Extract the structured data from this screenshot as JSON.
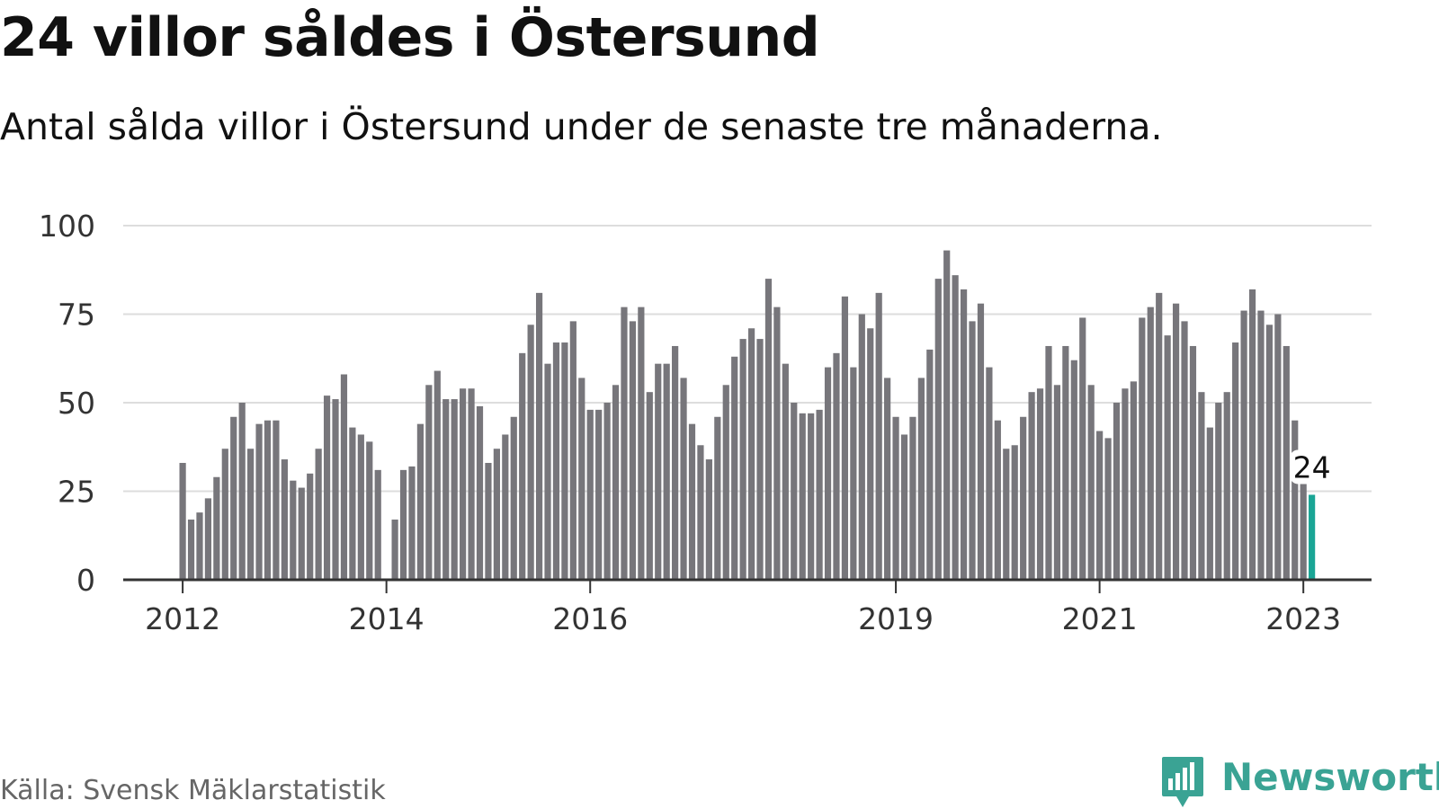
{
  "header": {
    "title": "24 villor såldes i Östersund",
    "subtitle": "Antal sålda villor i Östersund under de senaste tre månaderna."
  },
  "footer": {
    "source": "Källa: Svensk Mäklarstatistik",
    "brand_name": "Newsworthy",
    "brand_icon": "chart-speech-bubble-icon"
  },
  "colors": {
    "bar": "#77767b",
    "highlight": "#1aa595",
    "grid": "#dddddd",
    "axis": "#333333",
    "brand": "#3aa394"
  },
  "chart_data": {
    "type": "bar",
    "title": "24 villor såldes i Östersund",
    "subtitle": "Antal sålda villor i Östersund under de senaste tre månaderna.",
    "xlabel": "",
    "ylabel": "",
    "ylim": [
      0,
      100
    ],
    "yticks": [
      0,
      25,
      50,
      75,
      100
    ],
    "grid": true,
    "legend": "none",
    "x_start": "2012-01",
    "x_tick_labels": [
      "2012",
      "2014",
      "2016",
      "2019",
      "2021",
      "2023"
    ],
    "annotation": {
      "label": "24",
      "index": 133
    },
    "values": [
      33,
      17,
      19,
      23,
      29,
      37,
      46,
      50,
      37,
      44,
      45,
      45,
      34,
      28,
      26,
      30,
      37,
      52,
      51,
      58,
      43,
      41,
      39,
      31,
      0,
      17,
      31,
      32,
      44,
      55,
      59,
      51,
      51,
      54,
      54,
      49,
      33,
      37,
      41,
      46,
      64,
      72,
      81,
      61,
      67,
      67,
      73,
      57,
      48,
      48,
      50,
      55,
      77,
      73,
      77,
      53,
      61,
      61,
      66,
      57,
      44,
      38,
      34,
      46,
      55,
      63,
      68,
      71,
      68,
      85,
      77,
      61,
      50,
      47,
      47,
      48,
      60,
      64,
      80,
      60,
      75,
      71,
      81,
      57,
      46,
      41,
      46,
      57,
      65,
      85,
      93,
      86,
      82,
      73,
      78,
      60,
      45,
      37,
      38,
      46,
      53,
      54,
      66,
      55,
      66,
      62,
      74,
      55,
      42,
      40,
      50,
      54,
      56,
      74,
      77,
      81,
      69,
      78,
      73,
      66,
      53,
      43,
      50,
      53,
      67,
      76,
      82,
      76,
      72,
      75,
      66,
      45,
      28,
      24
    ]
  }
}
